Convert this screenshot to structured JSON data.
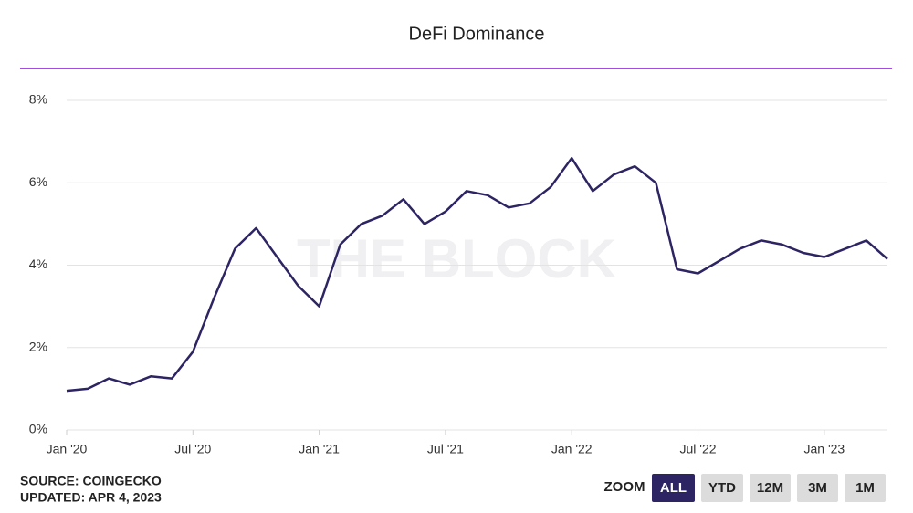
{
  "chart_data": {
    "type": "line",
    "title": "DeFi Dominance",
    "watermark": "THE BLOCK",
    "source": "SOURCE: COINGECKO",
    "updated": "UPDATED: APR 4, 2023",
    "zoom_label": "ZOOM",
    "zoom_options": [
      "ALL",
      "YTD",
      "12M",
      "3M",
      "1M"
    ],
    "zoom_selected": "ALL",
    "x": [
      "2020-01",
      "2020-02",
      "2020-03",
      "2020-04",
      "2020-05",
      "2020-06",
      "2020-07",
      "2020-08",
      "2020-09",
      "2020-10",
      "2020-11",
      "2020-12",
      "2021-01",
      "2021-02",
      "2021-03",
      "2021-04",
      "2021-05",
      "2021-06",
      "2021-07",
      "2021-08",
      "2021-09",
      "2021-10",
      "2021-11",
      "2021-12",
      "2022-01",
      "2022-02",
      "2022-03",
      "2022-04",
      "2022-05",
      "2022-06",
      "2022-07",
      "2022-08",
      "2022-09",
      "2022-10",
      "2022-11",
      "2022-12",
      "2023-01",
      "2023-02",
      "2023-03",
      "2023-04"
    ],
    "series": [
      {
        "name": "DeFi Dominance",
        "color": "#2d2563",
        "values": [
          0.95,
          1.0,
          1.25,
          1.1,
          1.3,
          1.25,
          1.9,
          3.2,
          4.4,
          4.9,
          4.2,
          3.5,
          3.0,
          4.5,
          5.0,
          5.2,
          5.6,
          5.0,
          5.3,
          5.8,
          5.7,
          5.4,
          5.5,
          5.9,
          6.6,
          5.8,
          6.2,
          6.4,
          6.0,
          3.9,
          3.8,
          4.1,
          4.4,
          4.6,
          4.5,
          4.3,
          4.2,
          4.4,
          4.6,
          4.15
        ]
      }
    ],
    "xlim": [
      "2020-01",
      "2023-04"
    ],
    "xticks": [
      {
        "value": "2020-01",
        "label": "Jan '20"
      },
      {
        "value": "2020-07",
        "label": "Jul '20"
      },
      {
        "value": "2021-01",
        "label": "Jan '21"
      },
      {
        "value": "2021-07",
        "label": "Jul '21"
      },
      {
        "value": "2022-01",
        "label": "Jan '22"
      },
      {
        "value": "2022-07",
        "label": "Jul '22"
      },
      {
        "value": "2023-01",
        "label": "Jan '23"
      }
    ],
    "ylim": [
      0,
      8
    ],
    "yticks": [
      {
        "value": 0,
        "label": "0%"
      },
      {
        "value": 2,
        "label": "2%"
      },
      {
        "value": 4,
        "label": "4%"
      },
      {
        "value": 6,
        "label": "6%"
      },
      {
        "value": 8,
        "label": "8%"
      }
    ],
    "grid": true
  }
}
